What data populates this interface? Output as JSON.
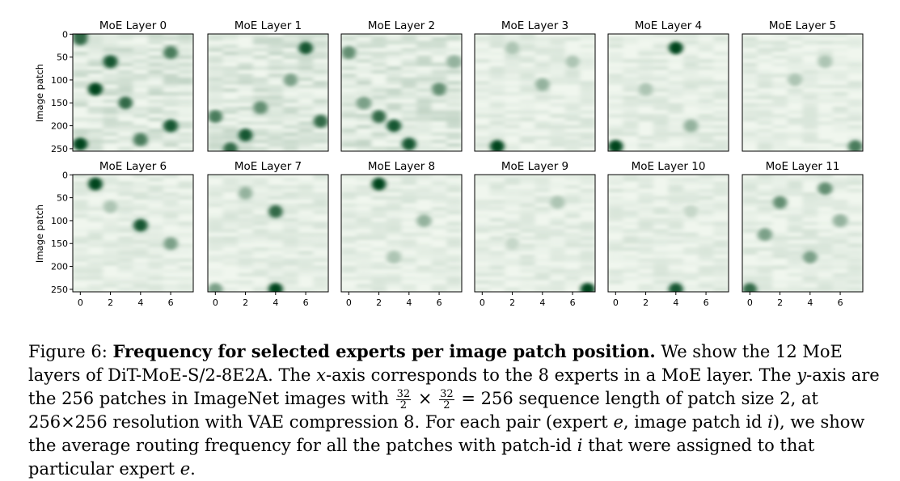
{
  "chart_data": {
    "type": "heatmap",
    "panels": [
      {
        "title": "MoE Layer 0",
        "dark": [
          [
            0,
            0,
            0.9
          ],
          [
            0,
            10,
            0.8
          ],
          [
            2,
            60,
            0.9
          ],
          [
            6,
            40,
            0.7
          ],
          [
            1,
            120,
            1.0
          ],
          [
            3,
            150,
            0.8
          ],
          [
            6,
            200,
            0.9
          ],
          [
            0,
            240,
            1.0
          ],
          [
            4,
            230,
            0.7
          ]
        ]
      },
      {
        "title": "MoE Layer 1",
        "dark": [
          [
            6,
            30,
            0.9
          ],
          [
            0,
            180,
            0.7
          ],
          [
            2,
            220,
            0.9
          ],
          [
            7,
            190,
            0.8
          ],
          [
            3,
            160,
            0.6
          ],
          [
            5,
            100,
            0.5
          ],
          [
            1,
            250,
            0.8
          ]
        ]
      },
      {
        "title": "MoE Layer 2",
        "dark": [
          [
            3,
            200,
            0.9
          ],
          [
            2,
            180,
            0.8
          ],
          [
            6,
            120,
            0.6
          ],
          [
            0,
            40,
            0.6
          ],
          [
            4,
            240,
            0.9
          ],
          [
            1,
            150,
            0.5
          ],
          [
            7,
            60,
            0.4
          ]
        ]
      },
      {
        "title": "MoE Layer 3",
        "dark": [
          [
            1,
            245,
            1.0
          ],
          [
            4,
            110,
            0.4
          ],
          [
            6,
            60,
            0.3
          ],
          [
            2,
            30,
            0.3
          ]
        ]
      },
      {
        "title": "MoE Layer 4",
        "dark": [
          [
            4,
            30,
            1.0
          ],
          [
            0,
            245,
            1.0
          ],
          [
            5,
            200,
            0.4
          ],
          [
            2,
            120,
            0.3
          ]
        ]
      },
      {
        "title": "MoE Layer 5",
        "dark": [
          [
            7,
            245,
            0.7
          ],
          [
            3,
            100,
            0.3
          ],
          [
            5,
            60,
            0.3
          ]
        ]
      },
      {
        "title": "MoE Layer 6",
        "dark": [
          [
            1,
            20,
            1.0
          ],
          [
            4,
            110,
            0.9
          ],
          [
            6,
            150,
            0.5
          ],
          [
            2,
            70,
            0.3
          ]
        ]
      },
      {
        "title": "MoE Layer 7",
        "dark": [
          [
            4,
            80,
            0.8
          ],
          [
            4,
            250,
            1.0
          ],
          [
            2,
            40,
            0.4
          ],
          [
            0,
            250,
            0.5
          ]
        ]
      },
      {
        "title": "MoE Layer 8",
        "dark": [
          [
            2,
            20,
            1.0
          ],
          [
            5,
            100,
            0.4
          ],
          [
            3,
            180,
            0.3
          ]
        ]
      },
      {
        "title": "MoE Layer 9",
        "dark": [
          [
            7,
            250,
            1.0
          ],
          [
            5,
            60,
            0.3
          ],
          [
            2,
            150,
            0.2
          ]
        ]
      },
      {
        "title": "MoE Layer 10",
        "dark": [
          [
            4,
            250,
            0.9
          ],
          [
            5,
            80,
            0.2
          ]
        ]
      },
      {
        "title": "MoE Layer 11",
        "dark": [
          [
            0,
            250,
            0.8
          ],
          [
            2,
            60,
            0.6
          ],
          [
            5,
            30,
            0.6
          ],
          [
            4,
            180,
            0.5
          ],
          [
            1,
            130,
            0.5
          ],
          [
            6,
            100,
            0.4
          ]
        ]
      }
    ],
    "xlabel": "",
    "ylabel": "Image patch",
    "xticks": [
      0,
      2,
      4,
      6
    ],
    "yticks": [
      0,
      50,
      100,
      150,
      200,
      250
    ],
    "x_range": [
      -0.5,
      7.5
    ],
    "y_range": [
      -0.5,
      255.5
    ],
    "colormap": [
      "#f7fcf5",
      "#00441b"
    ]
  },
  "caption": {
    "label": "Figure 6: ",
    "title": "Frequency for selected experts per image patch position.",
    "text_1": " We show the 12 MoE layers of DiT-MoE-S/2-8E2A. The ",
    "x_var": "x",
    "text_2": "-axis corresponds to the 8 experts in a MoE layer. The ",
    "y_var": "y",
    "text_3": "-axis are the 256 patches in ImageNet images with ",
    "frac_num": "32",
    "frac_den": "2",
    "times": " × ",
    "text_4": " = 256 sequence length of patch size 2, at 256×256 resolution with VAE compression 8. For each pair (expert ",
    "e_var": "e",
    "text_5": ", image patch id ",
    "i_var": "i",
    "text_6": "), we show the average routing frequency for all the patches with patch-id ",
    "text_7": " that were assigned to that particular expert ",
    "end": "."
  }
}
